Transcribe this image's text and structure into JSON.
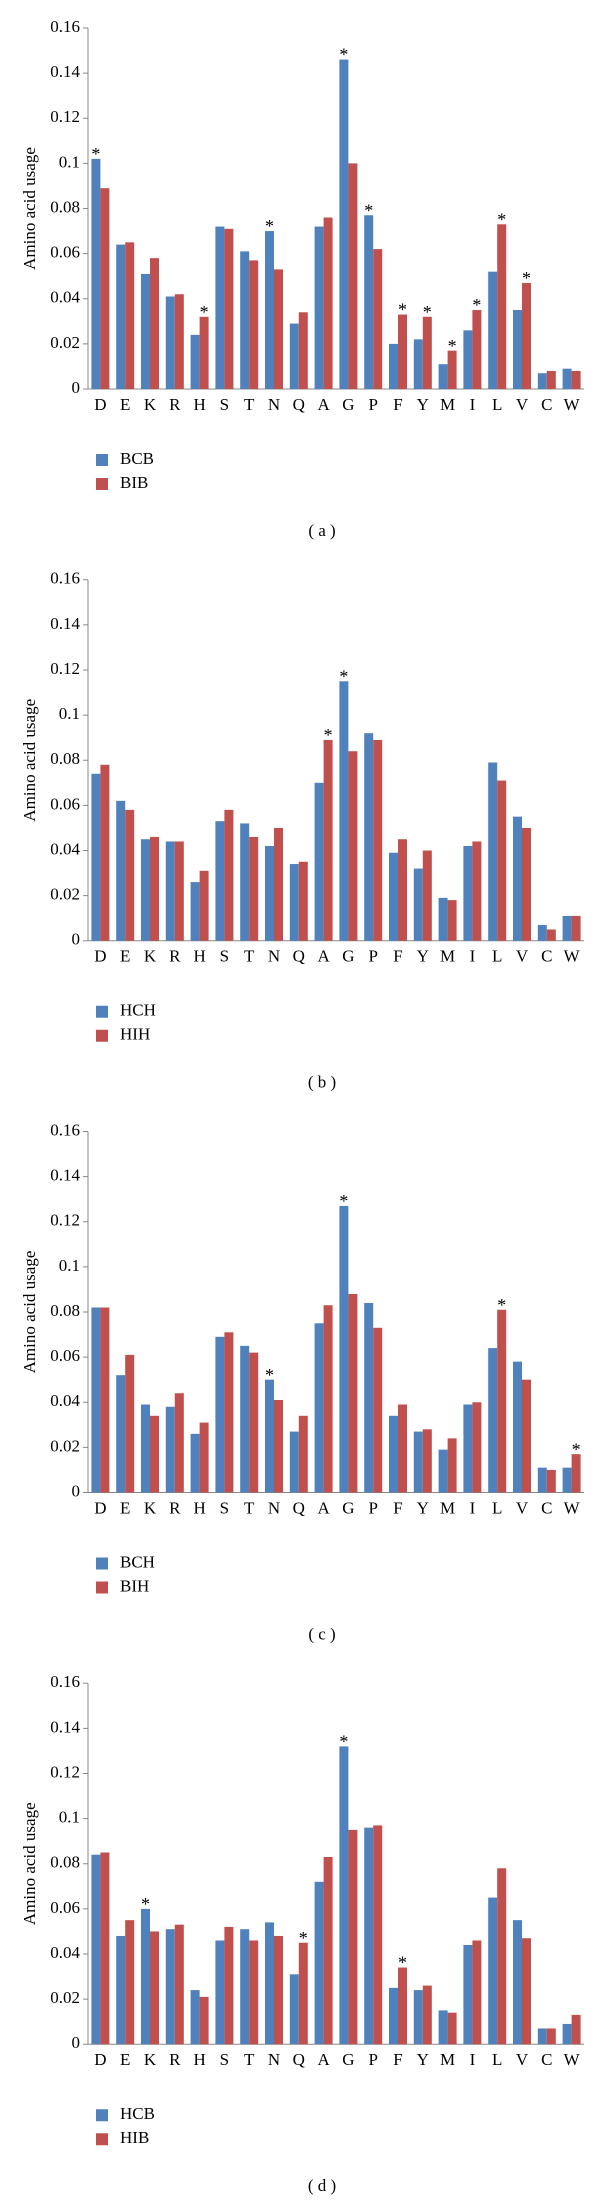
{
  "chart_data": [
    {
      "type": "bar",
      "ylabel": "Amino acid usage",
      "caption": "( a )",
      "categories": [
        "D",
        "E",
        "K",
        "R",
        "H",
        "S",
        "T",
        "N",
        "Q",
        "A",
        "G",
        "P",
        "F",
        "Y",
        "M",
        "I",
        "L",
        "V",
        "C",
        "W"
      ],
      "ylim": [
        0,
        0.16
      ],
      "yticks": [
        0,
        0.02,
        0.04,
        0.06,
        0.08,
        0.1,
        0.12,
        0.14,
        0.16
      ],
      "series": [
        {
          "name": "BCB",
          "color": "#4f81bd",
          "values": [
            0.102,
            0.064,
            0.051,
            0.041,
            0.024,
            0.072,
            0.061,
            0.07,
            0.029,
            0.072,
            0.146,
            0.077,
            0.02,
            0.022,
            0.011,
            0.026,
            0.052,
            0.035,
            0.007,
            0.009
          ],
          "annotations": [
            "*",
            null,
            null,
            null,
            null,
            null,
            null,
            "*",
            null,
            null,
            "*",
            "*",
            null,
            null,
            null,
            null,
            null,
            null,
            null,
            null
          ]
        },
        {
          "name": "BIB",
          "color": "#c0504d",
          "values": [
            0.089,
            0.065,
            0.058,
            0.042,
            0.032,
            0.071,
            0.057,
            0.053,
            0.034,
            0.076,
            0.1,
            0.062,
            0.033,
            0.032,
            0.017,
            0.035,
            0.073,
            0.047,
            0.008,
            0.008
          ],
          "annotations": [
            null,
            null,
            null,
            null,
            "*",
            null,
            null,
            null,
            null,
            null,
            null,
            null,
            "*",
            "*",
            "*",
            "*",
            "*",
            "*",
            null,
            null
          ]
        }
      ]
    },
    {
      "type": "bar",
      "ylabel": "Amino acid usage",
      "caption": "( b )",
      "categories": [
        "D",
        "E",
        "K",
        "R",
        "H",
        "S",
        "T",
        "N",
        "Q",
        "A",
        "G",
        "P",
        "F",
        "Y",
        "M",
        "I",
        "L",
        "V",
        "C",
        "W"
      ],
      "ylim": [
        0,
        0.16
      ],
      "yticks": [
        0,
        0.02,
        0.04,
        0.06,
        0.08,
        0.1,
        0.12,
        0.14,
        0.16
      ],
      "series": [
        {
          "name": "HCH",
          "color": "#4f81bd",
          "values": [
            0.074,
            0.062,
            0.045,
            0.044,
            0.026,
            0.053,
            0.052,
            0.042,
            0.034,
            0.07,
            0.115,
            0.092,
            0.039,
            0.032,
            0.019,
            0.042,
            0.079,
            0.055,
            0.007,
            0.011
          ],
          "annotations": [
            null,
            null,
            null,
            null,
            null,
            null,
            null,
            null,
            null,
            null,
            "*",
            null,
            null,
            null,
            null,
            null,
            null,
            null,
            null,
            null
          ]
        },
        {
          "name": "HIH",
          "color": "#c0504d",
          "values": [
            0.078,
            0.058,
            0.046,
            0.044,
            0.031,
            0.058,
            0.046,
            0.05,
            0.035,
            0.089,
            0.084,
            0.089,
            0.045,
            0.04,
            0.018,
            0.044,
            0.071,
            0.05,
            0.005,
            0.011
          ],
          "annotations": [
            null,
            null,
            null,
            null,
            null,
            null,
            null,
            null,
            null,
            "*",
            null,
            null,
            null,
            null,
            null,
            null,
            null,
            null,
            null,
            null
          ]
        }
      ]
    },
    {
      "type": "bar",
      "ylabel": "Amino acid usage",
      "caption": "( c )",
      "categories": [
        "D",
        "E",
        "K",
        "R",
        "H",
        "S",
        "T",
        "N",
        "Q",
        "A",
        "G",
        "P",
        "F",
        "Y",
        "M",
        "I",
        "L",
        "V",
        "C",
        "W"
      ],
      "ylim": [
        0,
        0.16
      ],
      "yticks": [
        0,
        0.02,
        0.04,
        0.06,
        0.08,
        0.1,
        0.12,
        0.14,
        0.16
      ],
      "series": [
        {
          "name": "BCH",
          "color": "#4f81bd",
          "values": [
            0.082,
            0.052,
            0.039,
            0.038,
            0.026,
            0.069,
            0.065,
            0.05,
            0.027,
            0.075,
            0.127,
            0.084,
            0.034,
            0.027,
            0.019,
            0.039,
            0.064,
            0.058,
            0.011,
            0.011
          ],
          "annotations": [
            null,
            null,
            null,
            null,
            null,
            null,
            null,
            "*",
            null,
            null,
            "*",
            null,
            null,
            null,
            null,
            null,
            null,
            null,
            null,
            null
          ]
        },
        {
          "name": "BIH",
          "color": "#c0504d",
          "values": [
            0.082,
            0.061,
            0.034,
            0.044,
            0.031,
            0.071,
            0.062,
            0.041,
            0.034,
            0.083,
            0.088,
            0.073,
            0.039,
            0.028,
            0.024,
            0.04,
            0.081,
            0.05,
            0.01,
            0.017
          ],
          "annotations": [
            null,
            null,
            null,
            null,
            null,
            null,
            null,
            null,
            null,
            null,
            null,
            null,
            null,
            null,
            null,
            null,
            "*",
            null,
            null,
            "*"
          ]
        }
      ]
    },
    {
      "type": "bar",
      "ylabel": "Amino acid usage",
      "caption": "( d )",
      "categories": [
        "D",
        "E",
        "K",
        "R",
        "H",
        "S",
        "T",
        "N",
        "Q",
        "A",
        "G",
        "P",
        "F",
        "Y",
        "M",
        "I",
        "L",
        "V",
        "C",
        "W"
      ],
      "ylim": [
        0,
        0.16
      ],
      "yticks": [
        0,
        0.02,
        0.04,
        0.06,
        0.08,
        0.1,
        0.12,
        0.14,
        0.16
      ],
      "series": [
        {
          "name": "HCB",
          "color": "#4f81bd",
          "values": [
            0.084,
            0.048,
            0.06,
            0.051,
            0.024,
            0.046,
            0.051,
            0.054,
            0.031,
            0.072,
            0.132,
            0.096,
            0.025,
            0.024,
            0.015,
            0.044,
            0.065,
            0.055,
            0.007,
            0.009
          ],
          "annotations": [
            null,
            null,
            "*",
            null,
            null,
            null,
            null,
            null,
            null,
            null,
            "*",
            null,
            null,
            null,
            null,
            null,
            null,
            null,
            null,
            null
          ]
        },
        {
          "name": "HIB",
          "color": "#c0504d",
          "values": [
            0.085,
            0.055,
            0.05,
            0.053,
            0.021,
            0.052,
            0.046,
            0.048,
            0.045,
            0.083,
            0.095,
            0.097,
            0.034,
            0.026,
            0.014,
            0.046,
            0.078,
            0.047,
            0.007,
            0.013
          ],
          "annotations": [
            null,
            null,
            null,
            null,
            null,
            null,
            null,
            null,
            "*",
            null,
            null,
            null,
            "*",
            null,
            null,
            null,
            null,
            null,
            null,
            null
          ]
        }
      ]
    }
  ]
}
